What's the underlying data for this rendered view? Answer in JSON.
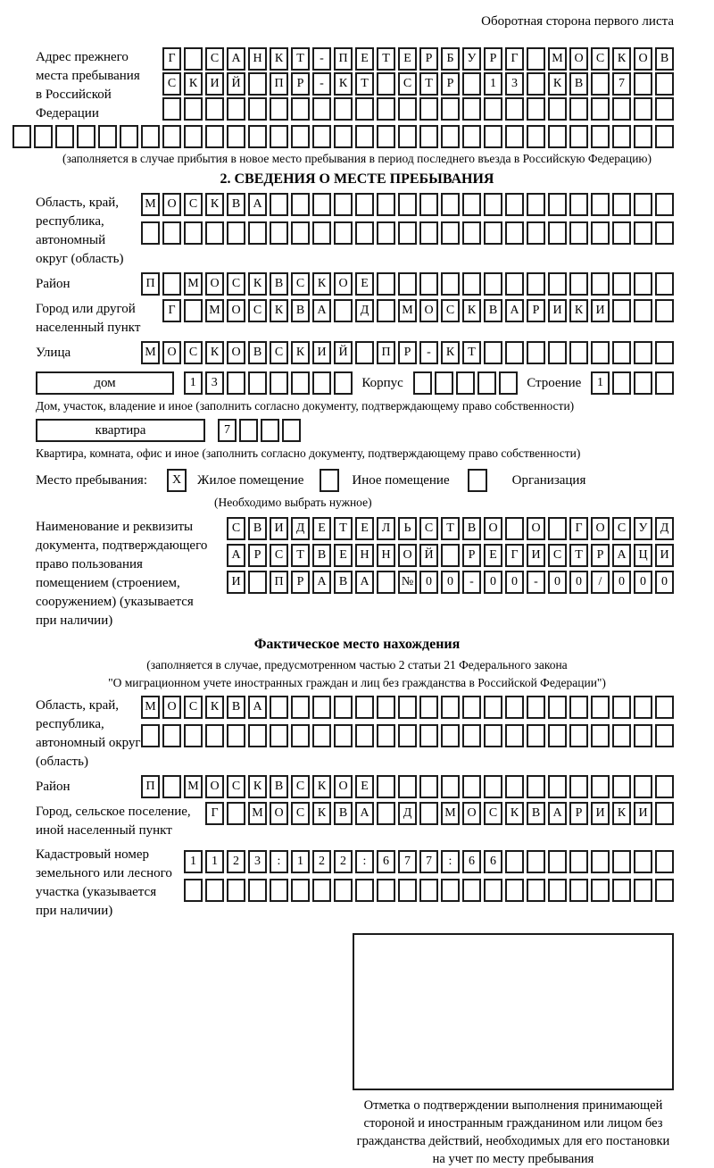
{
  "colors": {
    "ink": "#000000",
    "cell_border": "#1c1c1c",
    "background": "#ffffff"
  },
  "page_header": "Оборотная сторона первого листа",
  "prev_address": {
    "label_lines": [
      "Адрес прежнего",
      "места пребывания",
      "в Российской",
      "Федерации"
    ],
    "rows": [
      [
        "Г",
        "",
        "С",
        "А",
        "Н",
        "К",
        "Т",
        "-",
        "П",
        "Е",
        "Т",
        "Е",
        "Р",
        "Б",
        "У",
        "Р",
        "Г",
        "",
        "М",
        "О",
        "С",
        "К",
        "О",
        "В"
      ],
      [
        "С",
        "К",
        "И",
        "Й",
        "",
        "П",
        "Р",
        "-",
        "К",
        "Т",
        "",
        "С",
        "Т",
        "Р",
        "",
        "1",
        "3",
        "",
        "К",
        "В",
        "",
        "7",
        "",
        ""
      ],
      [
        "",
        "",
        "",
        "",
        "",
        "",
        "",
        "",
        "",
        "",
        "",
        "",
        "",
        "",
        "",
        "",
        "",
        "",
        "",
        "",
        "",
        "",
        "",
        ""
      ],
      [
        "",
        "",
        "",
        "",
        "",
        "",
        "",
        "",
        "",
        "",
        "",
        "",
        "",
        "",
        "",
        "",
        "",
        "",
        "",
        "",
        "",
        "",
        "",
        "",
        "",
        "",
        "",
        "",
        "",
        "",
        ""
      ]
    ],
    "note": "(заполняется в случае прибытия в новое место пребывания в период последнего въезда в Российскую Федерацию)"
  },
  "section2": {
    "title": "2. СВЕДЕНИЯ О МЕСТЕ ПРЕБЫВАНИЯ",
    "region": {
      "label_lines": [
        "Область, край,",
        "республика,",
        "автономный",
        "округ (область)"
      ],
      "rows": [
        [
          "М",
          "О",
          "С",
          "К",
          "В",
          "А",
          "",
          "",
          "",
          "",
          "",
          "",
          "",
          "",
          "",
          "",
          "",
          "",
          "",
          "",
          "",
          "",
          "",
          "",
          ""
        ],
        [
          "",
          "",
          "",
          "",
          "",
          "",
          "",
          "",
          "",
          "",
          "",
          "",
          "",
          "",
          "",
          "",
          "",
          "",
          "",
          "",
          "",
          "",
          "",
          "",
          ""
        ]
      ]
    },
    "district": {
      "label": "Район",
      "row": [
        "П",
        "",
        "М",
        "О",
        "С",
        "К",
        "В",
        "С",
        "К",
        "О",
        "Е",
        "",
        "",
        "",
        "",
        "",
        "",
        "",
        "",
        "",
        "",
        "",
        "",
        "",
        ""
      ]
    },
    "city": {
      "label_lines": [
        "Город или другой",
        "населенный пункт"
      ],
      "row": [
        "Г",
        "",
        "М",
        "О",
        "С",
        "К",
        "В",
        "А",
        "",
        "Д",
        "",
        "М",
        "О",
        "С",
        "К",
        "В",
        "А",
        "Р",
        "И",
        "К",
        "И",
        "",
        "",
        ""
      ]
    },
    "street": {
      "label": "Улица",
      "row": [
        "М",
        "О",
        "С",
        "К",
        "О",
        "В",
        "С",
        "К",
        "И",
        "Й",
        "",
        "П",
        "Р",
        "-",
        "К",
        "Т",
        "",
        "",
        "",
        "",
        "",
        "",
        "",
        "",
        ""
      ]
    },
    "house": {
      "box_label": "дом",
      "cells": [
        "1",
        "3",
        "",
        "",
        "",
        "",
        "",
        ""
      ],
      "korpus_label": "Корпус",
      "korpus_cells": [
        "",
        "",
        "",
        "",
        ""
      ],
      "stroenie_label": "Строение",
      "stroenie_cells": [
        "1",
        "",
        "",
        ""
      ]
    },
    "house_note": "Дом, участок, владение и иное (заполнить согласно документу, подтверждающему право собственности)",
    "apartment": {
      "box_label": "квартира",
      "cells": [
        "7",
        "",
        "",
        ""
      ]
    },
    "apartment_note": "Квартира, комната, офис и иное (заполнить согласно документу, подтверждающему право собственности)",
    "stay_type": {
      "label": "Место пребывания:",
      "options": [
        {
          "label": "Жилое помещение",
          "mark": "X"
        },
        {
          "label": "Иное помещение",
          "mark": ""
        },
        {
          "label": "Организация",
          "mark": ""
        }
      ],
      "hint": "(Необходимо выбрать нужное)"
    },
    "doc": {
      "label_lines": [
        "Наименование и реквизиты",
        "документа, подтверждающего",
        "право пользования",
        "помещением (строением,",
        "сооружением) (указывается",
        "при наличии)"
      ],
      "rows": [
        [
          "С",
          "В",
          "И",
          "Д",
          "Е",
          "Т",
          "Е",
          "Л",
          "Ь",
          "С",
          "Т",
          "В",
          "О",
          "",
          "О",
          "",
          "Г",
          "О",
          "С",
          "У",
          "Д"
        ],
        [
          "А",
          "Р",
          "С",
          "Т",
          "В",
          "Е",
          "Н",
          "Н",
          "О",
          "Й",
          "",
          "Р",
          "Е",
          "Г",
          "И",
          "С",
          "Т",
          "Р",
          "А",
          "Ц",
          "И"
        ],
        [
          "И",
          "",
          "П",
          "Р",
          "А",
          "В",
          "А",
          "",
          "№",
          "0",
          "0",
          "-",
          "0",
          "0",
          "-",
          "0",
          "0",
          "/",
          "0",
          "0",
          "0"
        ]
      ]
    }
  },
  "actual_location": {
    "title": "Фактическое место нахождения",
    "note_lines": [
      "(заполняется в случае, предусмотренном частью 2 статьи 21 Федерального закона",
      "\"О миграционном учете иностранных граждан и лиц без гражданства в Российской Федерации\")"
    ],
    "region": {
      "label_lines": [
        "Область, край,",
        "республика,",
        "автономный округ",
        "(область)"
      ],
      "rows": [
        [
          "М",
          "О",
          "С",
          "К",
          "В",
          "А",
          "",
          "",
          "",
          "",
          "",
          "",
          "",
          "",
          "",
          "",
          "",
          "",
          "",
          "",
          "",
          "",
          "",
          "",
          ""
        ],
        [
          "",
          "",
          "",
          "",
          "",
          "",
          "",
          "",
          "",
          "",
          "",
          "",
          "",
          "",
          "",
          "",
          "",
          "",
          "",
          "",
          "",
          "",
          "",
          "",
          ""
        ]
      ]
    },
    "district": {
      "label": "Район",
      "row": [
        "П",
        "",
        "М",
        "О",
        "С",
        "К",
        "В",
        "С",
        "К",
        "О",
        "Е",
        "",
        "",
        "",
        "",
        "",
        "",
        "",
        "",
        "",
        "",
        "",
        "",
        "",
        ""
      ]
    },
    "city": {
      "label_lines": [
        "Город, сельское поселение,",
        "иной населенный пункт"
      ],
      "row": [
        "Г",
        "",
        "М",
        "О",
        "С",
        "К",
        "В",
        "А",
        "",
        "Д",
        "",
        "М",
        "О",
        "С",
        "К",
        "В",
        "А",
        "Р",
        "И",
        "К",
        "И",
        ""
      ]
    },
    "cadastral": {
      "label_lines": [
        "Кадастровый номер",
        "земельного или лесного",
        "участка (указывается",
        "при наличии)"
      ],
      "rows": [
        [
          "1",
          "1",
          "2",
          "3",
          ":",
          "1",
          "2",
          "2",
          ":",
          "6",
          "7",
          "7",
          ":",
          "6",
          "6",
          "",
          "",
          "",
          "",
          "",
          "",
          "",
          ""
        ],
        [
          "",
          "",
          "",
          "",
          "",
          "",
          "",
          "",
          "",
          "",
          "",
          "",
          "",
          "",
          "",
          "",
          "",
          "",
          "",
          "",
          "",
          "",
          ""
        ]
      ]
    }
  },
  "stamp": {
    "note_lines": [
      "Отметка о подтверждении выполнения принимающей",
      "стороной и иностранным гражданином или лицом без",
      "гражданства действий, необходимых для его постановки",
      "на учет по месту пребывания"
    ]
  }
}
